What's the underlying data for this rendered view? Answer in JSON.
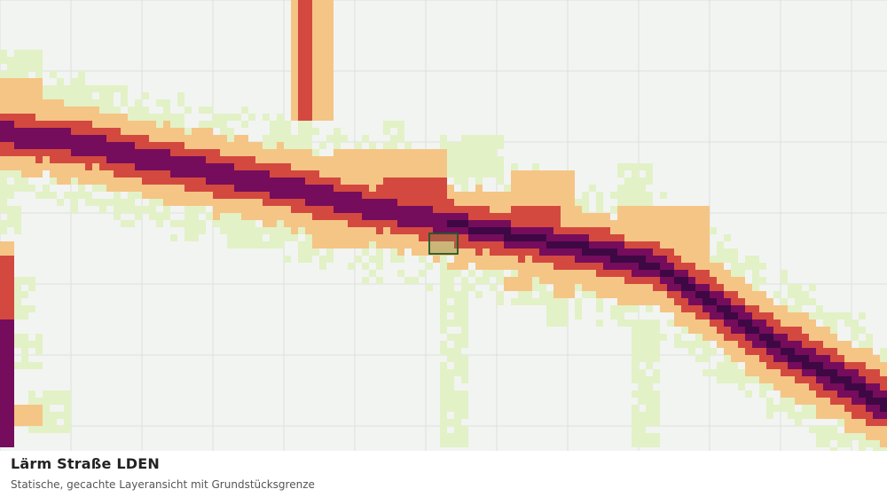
{
  "title": "Lärm Straße LDEN",
  "subtitle": "Statische, gecachte Layeransicht mit Grundstücksgrenze",
  "noise_classes": [
    {
      "level": 1,
      "color": "#e3f1c6"
    },
    {
      "level": 2,
      "color": "#f5c585"
    },
    {
      "level": 3,
      "color": "#d3493f"
    },
    {
      "level": 4,
      "color": "#760c5c"
    },
    {
      "level": 5,
      "color": "#3e0844"
    }
  ],
  "parcel_boundary": {
    "stroke": "#1d5a2e"
  },
  "base": {
    "background": "#f2f4f2",
    "grid_line": "#dcdfdc"
  }
}
